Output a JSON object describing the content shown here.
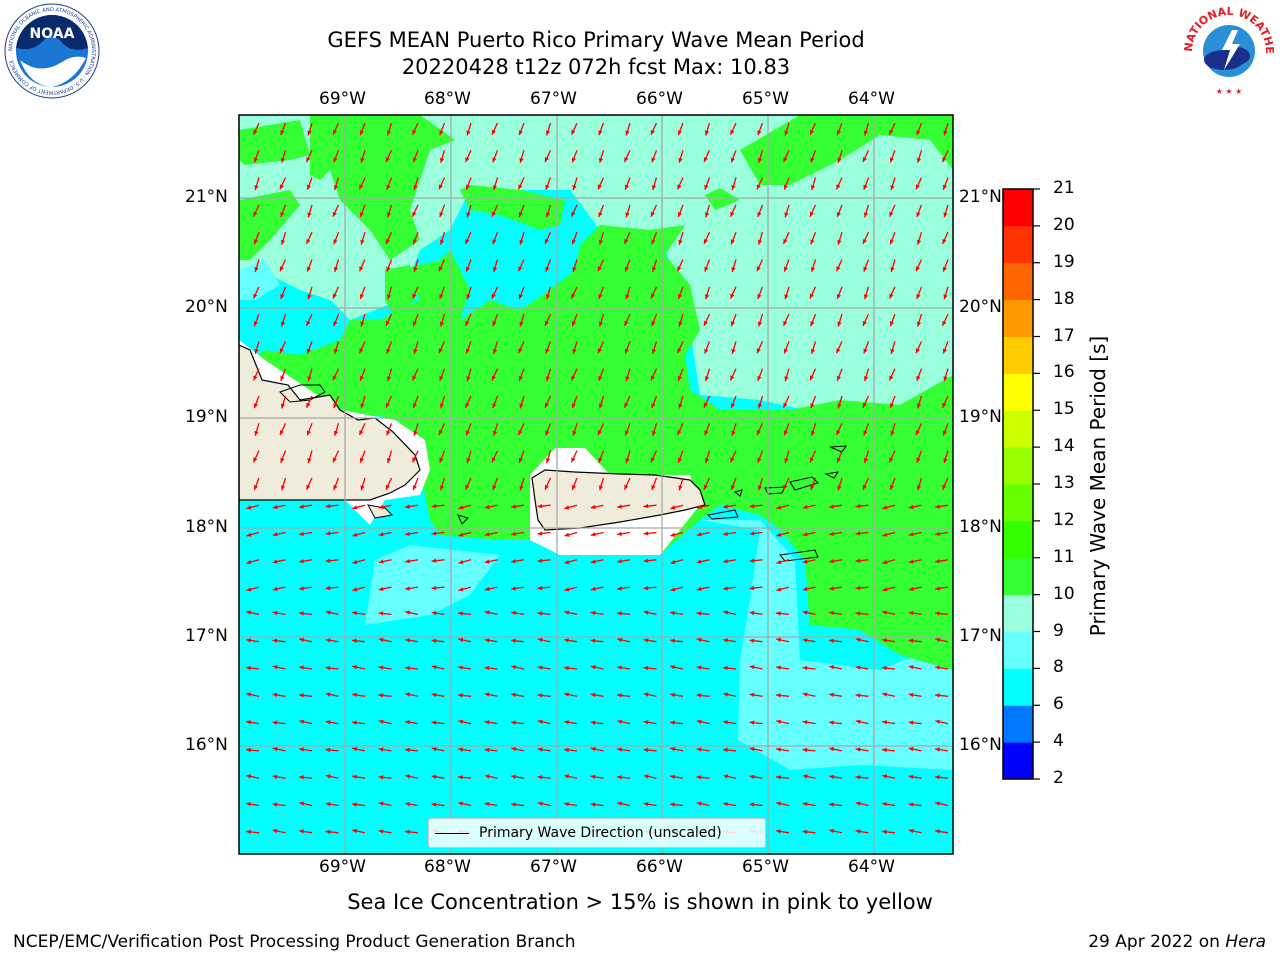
{
  "header": {
    "title_line1": "GEFS MEAN Puerto Rico Primary Wave Mean Period",
    "title_line2": "20220428 t12z 072h fcst   Max: 10.83"
  },
  "logos": {
    "noaa_text": "NOAA",
    "noaa_ring_text": "NATIONAL OCEANIC AND ATMOSPHERIC ADMINISTRATION · U.S. DEPARTMENT OF COMMERCE",
    "nws_ring_text": "NATIONAL WEATHER SERVICE"
  },
  "map": {
    "lon_labels": [
      "69°W",
      "68°W",
      "67°W",
      "66°W",
      "65°W",
      "64°W"
    ],
    "lat_labels": [
      "21°N",
      "20°N",
      "19°N",
      "18°N",
      "17°N",
      "16°N"
    ],
    "legend_label": "Primary Wave Direction (unscaled)",
    "arrow_color": "#ff0000",
    "land_color": "#efecdc"
  },
  "colorbar": {
    "title": "Primary Wave Mean Period [s]",
    "ticks": [
      "2",
      "4",
      "6",
      "8",
      "9",
      "10",
      "11",
      "12",
      "13",
      "14",
      "15",
      "16",
      "17",
      "18",
      "19",
      "20",
      "21"
    ],
    "colors": [
      "#0000ff",
      "#0078ff",
      "#00ffff",
      "#66ffff",
      "#99ffdd",
      "#33ff33",
      "#33ff00",
      "#66ff00",
      "#99ff00",
      "#ccff00",
      "#ffff00",
      "#ffcc00",
      "#ff9900",
      "#ff6600",
      "#ff3300",
      "#ff0000"
    ]
  },
  "footer": {
    "note": "Sea Ice Concentration > 15% is shown in pink to yellow",
    "org": "NCEP/EMC/Verification Post Processing Product Generation Branch",
    "date": "29 Apr 2022 on",
    "machine": "Hera"
  }
}
